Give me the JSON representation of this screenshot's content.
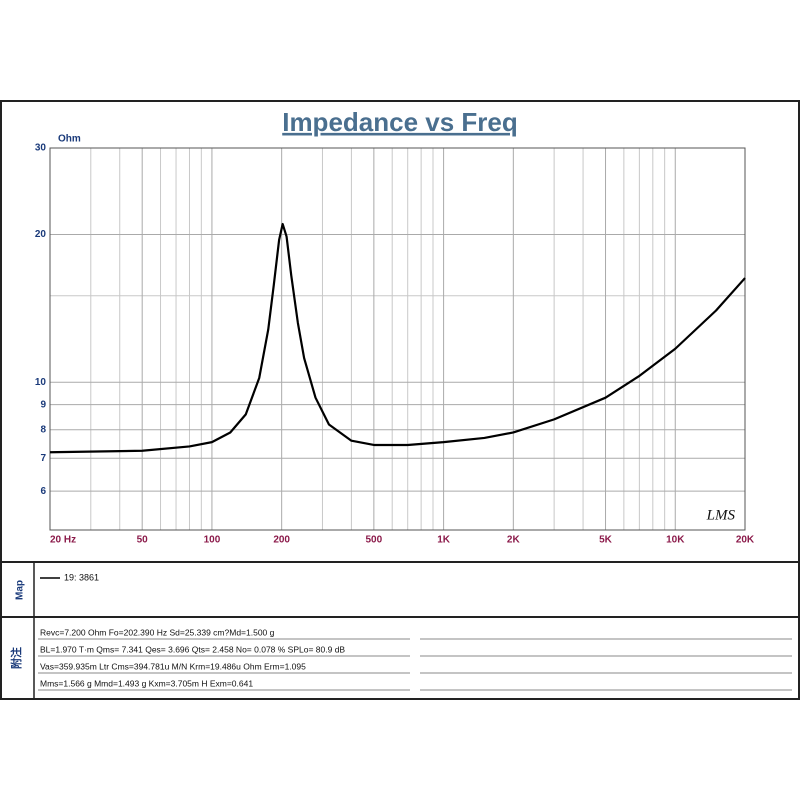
{
  "chart_data": {
    "type": "line",
    "title": "Impedance vs Freq",
    "y_label": "Ohm",
    "log_x": true,
    "log_y": true,
    "grid": true,
    "watermark": "LMS",
    "xlim": [
      20,
      20000
    ],
    "ylim": [
      5,
      30
    ],
    "xticks": [
      {
        "value": 20,
        "label": "20  Hz"
      },
      50,
      100,
      200,
      500,
      {
        "value": 1000,
        "label": "1K"
      },
      {
        "value": 2000,
        "label": "2K"
      },
      {
        "value": 5000,
        "label": "5K"
      },
      {
        "value": 10000,
        "label": "10K"
      },
      {
        "value": 20000,
        "label": "20K"
      }
    ],
    "x_minor_grid": [
      30,
      40,
      60,
      70,
      80,
      90,
      300,
      400,
      600,
      700,
      800,
      900,
      3000,
      4000,
      6000,
      7000,
      8000,
      9000
    ],
    "yticks": [
      6,
      7,
      8,
      9,
      10,
      20,
      30
    ],
    "y_minor_grid": [
      15
    ],
    "x": [
      20,
      50,
      80,
      100,
      120,
      140,
      160,
      175,
      185,
      195,
      202,
      210,
      220,
      235,
      250,
      280,
      320,
      400,
      500,
      700,
      1000,
      1500,
      2000,
      3000,
      5000,
      7000,
      10000,
      15000,
      20000
    ],
    "series": [
      {
        "name": "19: 3861",
        "color": "#000000",
        "values": [
          7.2,
          7.25,
          7.4,
          7.55,
          7.9,
          8.6,
          10.2,
          12.8,
          15.8,
          19.5,
          21,
          19.8,
          16.5,
          13.2,
          11.2,
          9.3,
          8.2,
          7.6,
          7.45,
          7.45,
          7.55,
          7.7,
          7.9,
          8.4,
          9.3,
          10.3,
          11.7,
          14,
          16.3
        ]
      }
    ]
  },
  "panels": {
    "map_label": "Map",
    "notes_label": "附注",
    "notes": [
      "Revc=7.200 Ohm  Fo=202.390 Hz  Sd=25.339 cm?Md=1.500 g",
      "BL=1.970 T·m  Qms= 7.341  Qes= 3.696  Qts= 2.458  No= 0.078 %  SPLo= 80.9 dB",
      "Vas=359.935m Ltr  Cms=394.781u M/N  Krm=19.486u Ohm  Erm=1.095",
      "Mms=1.566 g  Mmd=1.493 g  Kxm=3.705m H  Exm=0.641"
    ]
  }
}
